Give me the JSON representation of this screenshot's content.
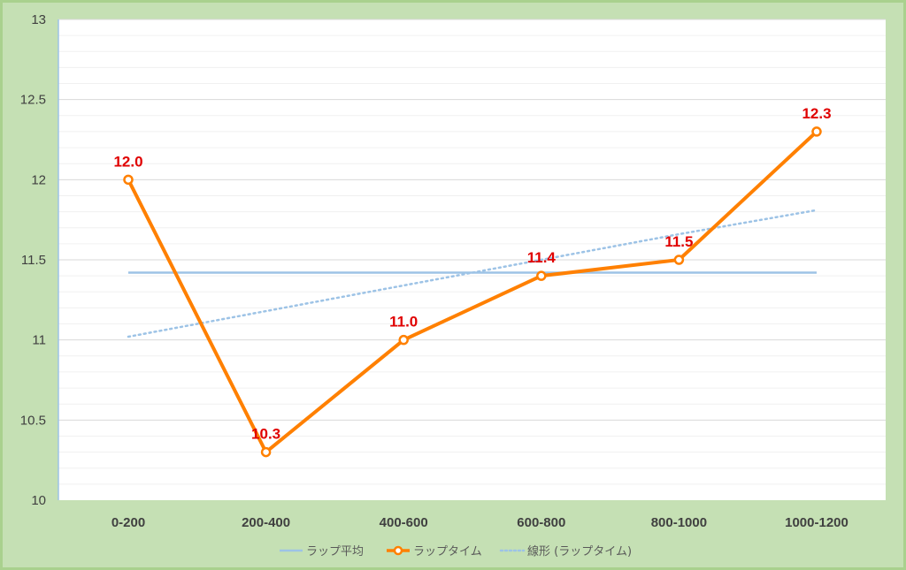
{
  "chart_data": {
    "type": "line",
    "categories": [
      "0-200",
      "200-400",
      "400-600",
      "600-800",
      "800-1000",
      "1000-1200"
    ],
    "ylim": [
      10,
      13
    ],
    "yticks": [
      "10",
      "10.5",
      "11",
      "11.5",
      "12",
      "12.5",
      "13"
    ],
    "grid": true,
    "legend_position": "bottom",
    "series": [
      {
        "name": "ラップ平均",
        "type": "line",
        "color": "#9dc3e6",
        "values": [
          11.42,
          11.42,
          11.42,
          11.42,
          11.42,
          11.42
        ]
      },
      {
        "name": "ラップタイム",
        "type": "line-markers",
        "color": "#ff8000",
        "values": [
          12.0,
          10.3,
          11.0,
          11.4,
          11.5,
          12.3
        ],
        "data_labels": [
          "12.0",
          "10.3",
          "11.0",
          "11.4",
          "11.5",
          "12.3"
        ]
      },
      {
        "name": "線形 (ラップタイム)",
        "type": "trendline",
        "color": "#9dc3e6",
        "values": [
          11.02,
          11.18,
          11.34,
          11.5,
          11.66,
          11.81
        ]
      }
    ]
  }
}
